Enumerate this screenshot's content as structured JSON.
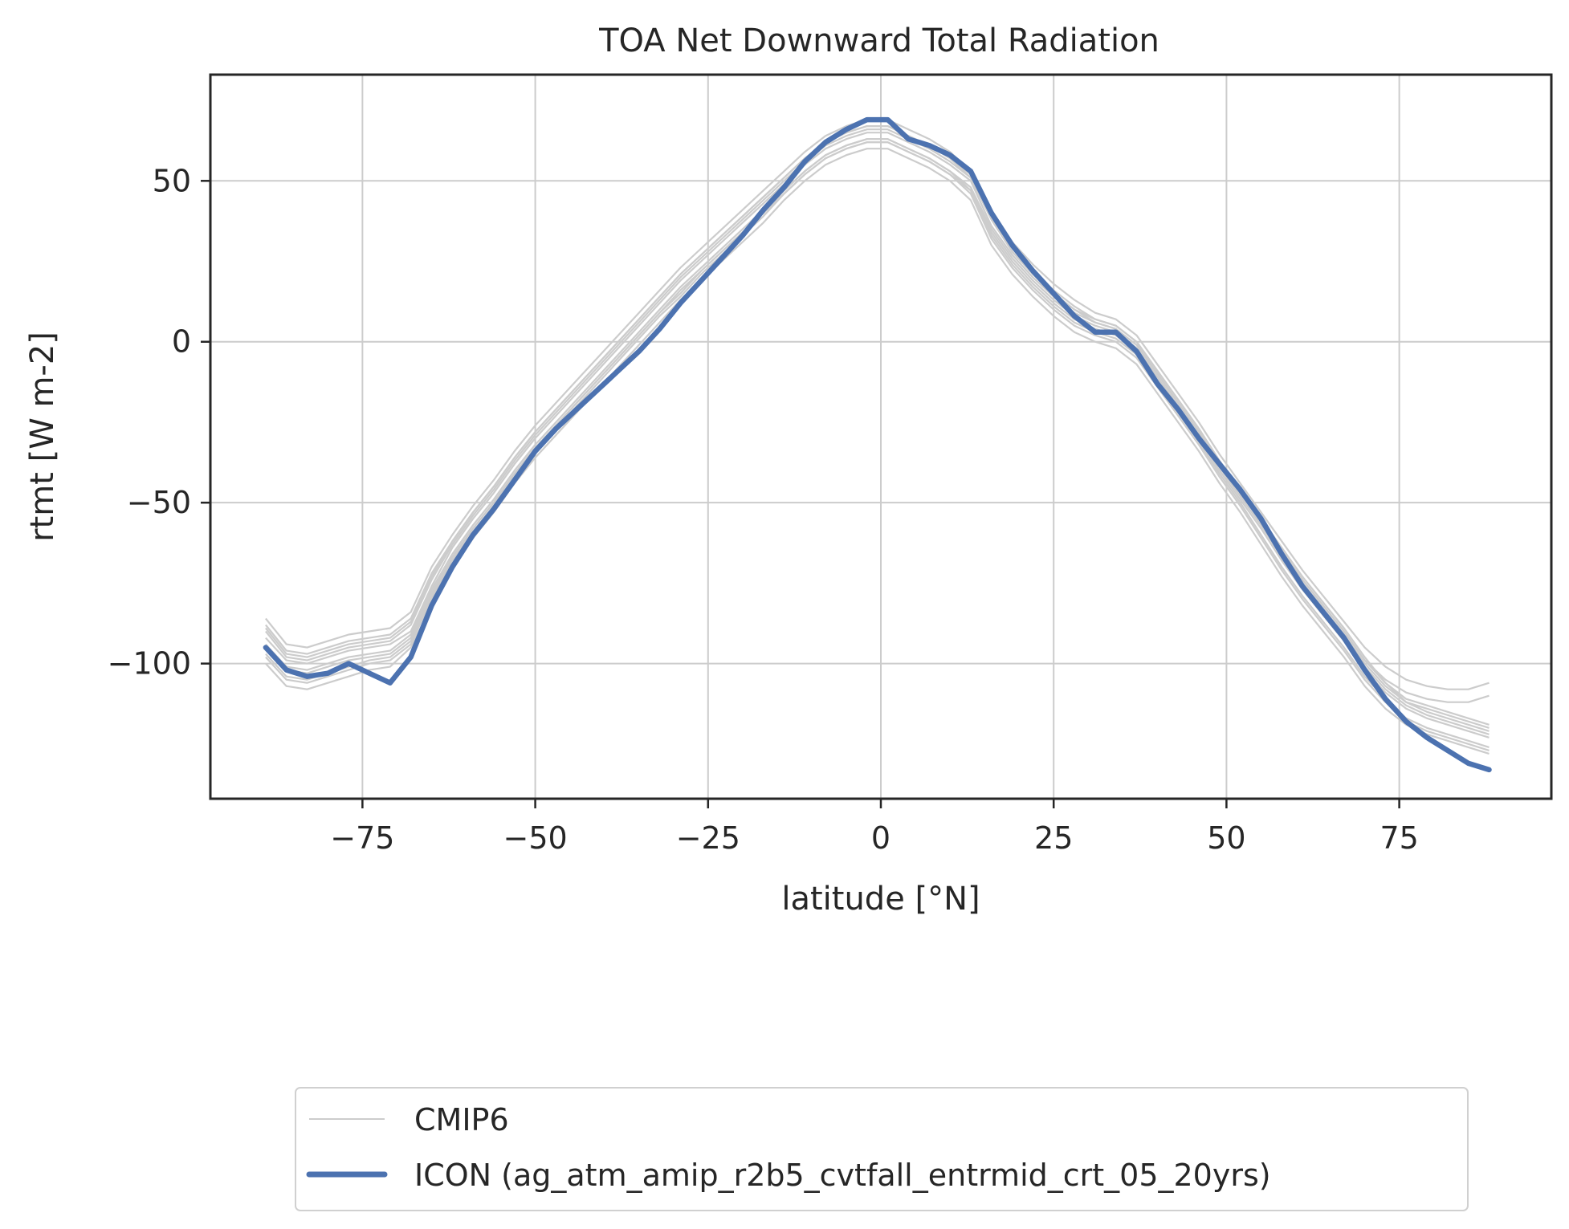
{
  "chart_data": {
    "type": "line",
    "title": "TOA Net Downward Total Radiation",
    "xlabel": "latitude [°N]",
    "ylabel": "rtmt [W m-2]",
    "xlim": [
      -97,
      97
    ],
    "ylim": [
      -142,
      83
    ],
    "xticks": [
      -75,
      -50,
      -25,
      0,
      25,
      50,
      75
    ],
    "yticks": [
      -100,
      -50,
      0,
      50
    ],
    "xtick_labels": [
      "−75",
      "−50",
      "−25",
      "0",
      "25",
      "50",
      "75"
    ],
    "ytick_labels": [
      "−100",
      "−50",
      "0",
      "50"
    ],
    "grid": true,
    "legend_position": "bottom-center, below plot",
    "colors": {
      "cmip6": "#cccccc",
      "icon": "#4c72b0",
      "grid": "#cccccc",
      "axes": "#262626",
      "legend_border": "#d0d0d0"
    },
    "legend": [
      {
        "label": "CMIP6",
        "series": "CMIP6"
      },
      {
        "label": "ICON (ag_atm_amip_r2b5_cvtfall_entrmid_crt_05_20yrs)",
        "series": "ICON"
      }
    ],
    "lat": [
      -89,
      -86,
      -83,
      -80,
      -77,
      -74,
      -71,
      -68,
      -65,
      -62,
      -59,
      -56,
      -53,
      -50,
      -47,
      -44,
      -41,
      -38,
      -35,
      -32,
      -29,
      -26,
      -23,
      -20,
      -17,
      -14,
      -11,
      -8,
      -5,
      -2,
      1,
      4,
      7,
      10,
      13,
      16,
      19,
      22,
      25,
      28,
      31,
      34,
      37,
      40,
      43,
      46,
      49,
      52,
      55,
      58,
      61,
      64,
      67,
      70,
      73,
      76,
      79,
      82,
      85,
      88
    ],
    "series": [
      {
        "name": "ICON",
        "values": [
          -95,
          -102,
          -104,
          -103,
          -100,
          -103,
          -106,
          -98,
          -82,
          -70,
          -60,
          -52,
          -43,
          -34,
          -27,
          -21,
          -15,
          -9,
          -3,
          4,
          12,
          19,
          26,
          33,
          41,
          48,
          56,
          62,
          66,
          69,
          69,
          63,
          61,
          58,
          53,
          40,
          30,
          22,
          15,
          8,
          3,
          3,
          -3,
          -13,
          -21,
          -30,
          -38,
          -46,
          -55,
          -66,
          -76,
          -84,
          -92,
          -102,
          -111,
          -118,
          -123,
          -127,
          -131,
          -133
        ]
      },
      {
        "name": "CMIP6",
        "values": [
          -88,
          -96,
          -97,
          -95,
          -93,
          -92,
          -91,
          -86,
          -72,
          -62,
          -53,
          -45,
          -36,
          -28,
          -21,
          -14,
          -7,
          0,
          7,
          14,
          21,
          27,
          33,
          39,
          45,
          51,
          57,
          62,
          65,
          67,
          67,
          64,
          61,
          57,
          52,
          39,
          29,
          22,
          16,
          11,
          7,
          5,
          0,
          -9,
          -18,
          -27,
          -37,
          -46,
          -55,
          -64,
          -73,
          -81,
          -89,
          -98,
          -106,
          -112,
          -114,
          -116,
          -118,
          -120
        ]
      },
      {
        "name": "CMIP6",
        "values": [
          -92,
          -99,
          -100,
          -98,
          -96,
          -95,
          -94,
          -90,
          -76,
          -64,
          -55,
          -47,
          -38,
          -30,
          -23,
          -16,
          -9,
          -2,
          5,
          12,
          19,
          25,
          31,
          37,
          43,
          49,
          55,
          60,
          63,
          65,
          65,
          62,
          59,
          55,
          50,
          36,
          27,
          20,
          14,
          9,
          6,
          4,
          -1,
          -10,
          -19,
          -28,
          -38,
          -47,
          -56,
          -66,
          -75,
          -83,
          -91,
          -100,
          -107,
          -112,
          -115,
          -117,
          -119,
          -121
        ]
      },
      {
        "name": "CMIP6",
        "values": [
          -97,
          -104,
          -105,
          -103,
          -101,
          -99,
          -98,
          -93,
          -79,
          -67,
          -58,
          -50,
          -41,
          -33,
          -26,
          -19,
          -12,
          -5,
          2,
          9,
          15,
          22,
          28,
          34,
          40,
          47,
          53,
          58,
          61,
          63,
          63,
          60,
          57,
          53,
          47,
          33,
          24,
          17,
          11,
          6,
          3,
          1,
          -4,
          -13,
          -22,
          -31,
          -41,
          -50,
          -60,
          -70,
          -79,
          -87,
          -95,
          -104,
          -111,
          -117,
          -120,
          -122,
          -124,
          -126
        ]
      },
      {
        "name": "CMIP6",
        "values": [
          -100,
          -107,
          -108,
          -106,
          -104,
          -102,
          -101,
          -95,
          -82,
          -70,
          -61,
          -53,
          -44,
          -36,
          -29,
          -22,
          -15,
          -8,
          -1,
          6,
          13,
          19,
          25,
          31,
          37,
          44,
          50,
          55,
          58,
          60,
          60,
          57,
          54,
          50,
          44,
          30,
          21,
          14,
          8,
          3,
          0,
          -2,
          -7,
          -16,
          -25,
          -34,
          -44,
          -53,
          -63,
          -73,
          -82,
          -90,
          -98,
          -107,
          -114,
          -119,
          -122,
          -124,
          -126,
          -128
        ]
      },
      {
        "name": "CMIP6",
        "values": [
          -86,
          -94,
          -95,
          -93,
          -91,
          -90,
          -89,
          -84,
          -70,
          -60,
          -51,
          -43,
          -34,
          -26,
          -19,
          -12,
          -5,
          2,
          9,
          16,
          23,
          29,
          35,
          41,
          47,
          53,
          59,
          64,
          67,
          69,
          69,
          66,
          63,
          59,
          53,
          41,
          31,
          24,
          18,
          13,
          9,
          7,
          2,
          -7,
          -16,
          -25,
          -35,
          -44,
          -53,
          -62,
          -71,
          -79,
          -87,
          -95,
          -101,
          -105,
          -107,
          -108,
          -108,
          -106
        ]
      },
      {
        "name": "CMIP6",
        "values": [
          -94,
          -101,
          -102,
          -100,
          -98,
          -97,
          -96,
          -91,
          -77,
          -66,
          -57,
          -49,
          -40,
          -32,
          -25,
          -18,
          -11,
          -4,
          3,
          10,
          17,
          23,
          29,
          35,
          41,
          47,
          53,
          58,
          61,
          63,
          63,
          60,
          57,
          53,
          48,
          35,
          26,
          19,
          13,
          8,
          5,
          3,
          -2,
          -11,
          -20,
          -29,
          -39,
          -48,
          -57,
          -67,
          -76,
          -84,
          -92,
          -101,
          -108,
          -113,
          -116,
          -118,
          -120,
          -122
        ]
      },
      {
        "name": "CMIP6",
        "values": [
          -90,
          -98,
          -99,
          -97,
          -95,
          -94,
          -93,
          -88,
          -74,
          -63,
          -54,
          -46,
          -37,
          -29,
          -22,
          -15,
          -8,
          -1,
          6,
          13,
          20,
          26,
          32,
          38,
          44,
          50,
          56,
          61,
          64,
          66,
          66,
          63,
          60,
          56,
          51,
          38,
          28,
          21,
          15,
          10,
          7,
          5,
          0,
          -9,
          -18,
          -27,
          -37,
          -46,
          -55,
          -65,
          -74,
          -82,
          -90,
          -99,
          -105,
          -109,
          -111,
          -112,
          -112,
          -110
        ]
      },
      {
        "name": "CMIP6",
        "values": [
          -98,
          -105,
          -106,
          -104,
          -102,
          -100,
          -99,
          -94,
          -80,
          -68,
          -59,
          -51,
          -42,
          -34,
          -27,
          -20,
          -13,
          -6,
          1,
          8,
          14,
          21,
          27,
          33,
          39,
          46,
          52,
          57,
          60,
          62,
          62,
          59,
          56,
          52,
          46,
          32,
          23,
          16,
          10,
          5,
          2,
          0,
          -5,
          -14,
          -23,
          -32,
          -42,
          -51,
          -61,
          -71,
          -80,
          -88,
          -96,
          -105,
          -112,
          -118,
          -121,
          -123,
          -125,
          -127
        ]
      },
      {
        "name": "CMIP6",
        "values": [
          -89,
          -97,
          -98,
          -96,
          -94,
          -93,
          -92,
          -87,
          -73,
          -62,
          -53,
          -45,
          -36,
          -28,
          -21,
          -14,
          -7,
          0,
          7,
          14,
          21,
          27,
          33,
          39,
          45,
          51,
          57,
          62,
          65,
          67,
          67,
          64,
          61,
          57,
          51,
          38,
          28,
          21,
          15,
          10,
          6,
          4,
          -1,
          -10,
          -19,
          -28,
          -38,
          -47,
          -56,
          -65,
          -74,
          -82,
          -90,
          -99,
          -106,
          -111,
          -113,
          -115,
          -117,
          -119
        ]
      },
      {
        "name": "CMIP6",
        "values": [
          -95,
          -102,
          -103,
          -101,
          -99,
          -98,
          -97,
          -92,
          -78,
          -67,
          -58,
          -50,
          -41,
          -33,
          -26,
          -19,
          -12,
          -5,
          2,
          9,
          16,
          22,
          28,
          34,
          40,
          46,
          52,
          57,
          60,
          62,
          62,
          59,
          56,
          52,
          47,
          34,
          25,
          18,
          12,
          7,
          4,
          2,
          -3,
          -12,
          -21,
          -30,
          -40,
          -49,
          -58,
          -68,
          -77,
          -85,
          -93,
          -102,
          -109,
          -114,
          -117,
          -119,
          -121,
          -123
        ]
      }
    ]
  }
}
